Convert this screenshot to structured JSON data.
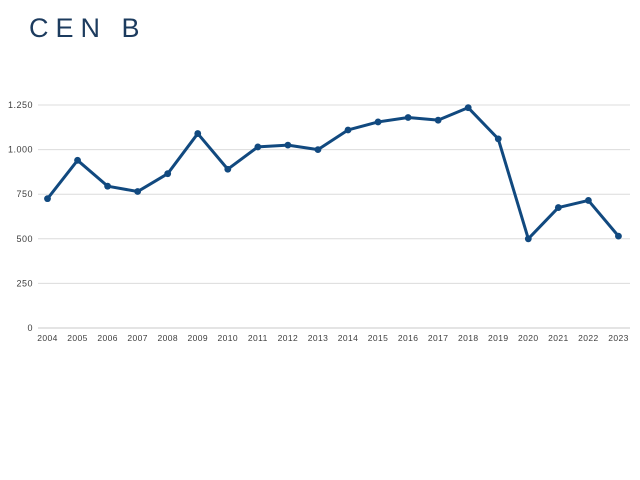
{
  "title": "CEN B",
  "colors": {
    "title": "#1c3b5e",
    "line": "#11497f",
    "marker": "#11497f",
    "gridline": "#dcdcdc",
    "baseline": "#c8c8c8",
    "tick_text": "#3d3d3d",
    "background": "#ffffff"
  },
  "chart_data": {
    "type": "line",
    "title": "CEN B",
    "xlabel": "",
    "ylabel": "",
    "categories": [
      "2004",
      "2005",
      "2006",
      "2007",
      "2008",
      "2009",
      "2010",
      "2011",
      "2012",
      "2013",
      "2014",
      "2015",
      "2016",
      "2017",
      "2018",
      "2019",
      "2020",
      "2021",
      "2022",
      "2023"
    ],
    "values": [
      725,
      940,
      795,
      765,
      865,
      1090,
      890,
      1015,
      1025,
      1000,
      1110,
      1155,
      1180,
      1165,
      1235,
      1060,
      500,
      675,
      715,
      515
    ],
    "ylim": [
      0,
      1250
    ],
    "ytick_values": [
      0,
      250,
      500,
      750,
      1000,
      1250
    ],
    "ytick_labels": [
      "0",
      "250",
      "500",
      "750",
      "1.000",
      "1.250"
    ],
    "grid": "horizontal-only",
    "legend": "none",
    "marker": "circle"
  }
}
